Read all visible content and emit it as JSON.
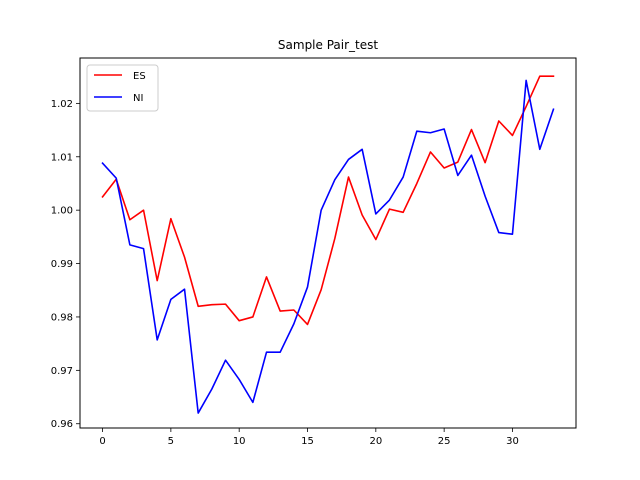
{
  "chart_data": {
    "type": "line",
    "title": "Sample Pair_test",
    "xlabel": "",
    "ylabel": "",
    "xlim": [
      -1.65,
      34.65
    ],
    "ylim": [
      0.9592,
      1.0285
    ],
    "x_ticks": [
      0,
      5,
      10,
      15,
      20,
      25,
      30
    ],
    "y_ticks": [
      0.96,
      0.97,
      0.98,
      0.99,
      1.0,
      1.01,
      1.02
    ],
    "y_tick_labels": [
      "0.96",
      "0.97",
      "0.98",
      "0.99",
      "1.00",
      "1.01",
      "1.02"
    ],
    "grid": false,
    "legend_position": "upper-left",
    "x": [
      0,
      1,
      2,
      3,
      4,
      5,
      6,
      7,
      8,
      9,
      10,
      11,
      12,
      13,
      14,
      15,
      16,
      17,
      18,
      19,
      20,
      21,
      22,
      23,
      24,
      25,
      26,
      27,
      28,
      29,
      30,
      31,
      32,
      33
    ],
    "series": [
      {
        "name": "ES",
        "color": "#ff0000",
        "values": [
          1.0025,
          1.0058,
          0.9982,
          1.0,
          0.9868,
          0.9984,
          0.9912,
          0.982,
          0.9823,
          0.9824,
          0.9793,
          0.98,
          0.9875,
          0.9811,
          0.9813,
          0.9786,
          0.9851,
          0.9947,
          1.0062,
          0.9991,
          0.9945,
          1.0002,
          0.9996,
          1.005,
          1.0109,
          1.0079,
          1.009,
          1.0151,
          1.0089,
          1.0167,
          1.014,
          1.0194,
          1.0251,
          1.0251
        ]
      },
      {
        "name": "NI",
        "color": "#0000ff",
        "values": [
          1.0088,
          1.006,
          0.9935,
          0.9928,
          0.9757,
          0.9833,
          0.9852,
          0.962,
          0.9665,
          0.9719,
          0.9683,
          0.964,
          0.9734,
          0.9734,
          0.9787,
          0.9856,
          1.0,
          1.0057,
          1.0095,
          1.0114,
          0.9993,
          1.0019,
          1.0062,
          1.0148,
          1.0145,
          1.0152,
          1.0065,
          1.0103,
          1.0026,
          0.9958,
          0.9955,
          1.0243,
          1.0114,
          1.0189
        ]
      }
    ]
  }
}
